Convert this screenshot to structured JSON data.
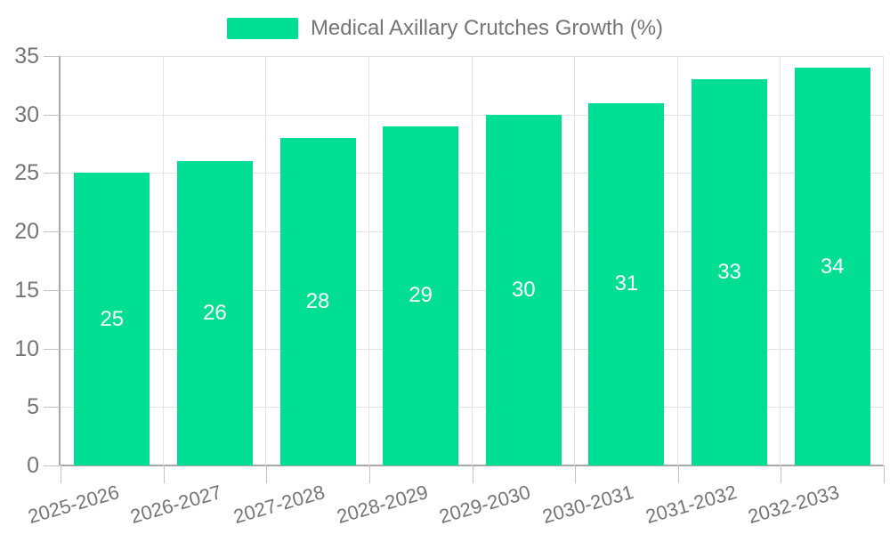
{
  "chart_data": {
    "type": "bar",
    "legend": {
      "label": "Medical Axillary Crutches Growth (%)",
      "position": "top"
    },
    "categories": [
      "2025-2026",
      "2026-2027",
      "2027-2028",
      "2028-2029",
      "2029-2030",
      "2030-2031",
      "2031-2032",
      "2032-2033"
    ],
    "series": [
      {
        "name": "Medical Axillary Crutches Growth (%)",
        "values": [
          25,
          26,
          28,
          29,
          30,
          31,
          33,
          34
        ]
      }
    ],
    "data_labels": [
      "25",
      "26",
      "28",
      "29",
      "30",
      "31",
      "33",
      "34"
    ],
    "title": "",
    "xlabel": "",
    "ylabel": "",
    "ylim": [
      0,
      35
    ],
    "yticks": [
      0,
      5,
      10,
      15,
      20,
      25,
      30,
      35
    ],
    "grid": "on",
    "colors": {
      "bar": "#00DE94",
      "bar_label": "#ffffff",
      "axis_text": "#757575",
      "grid_line": "#E3E3E3",
      "axis_line": "#A8A8A8",
      "tick_line": "#C4C4C4"
    }
  }
}
